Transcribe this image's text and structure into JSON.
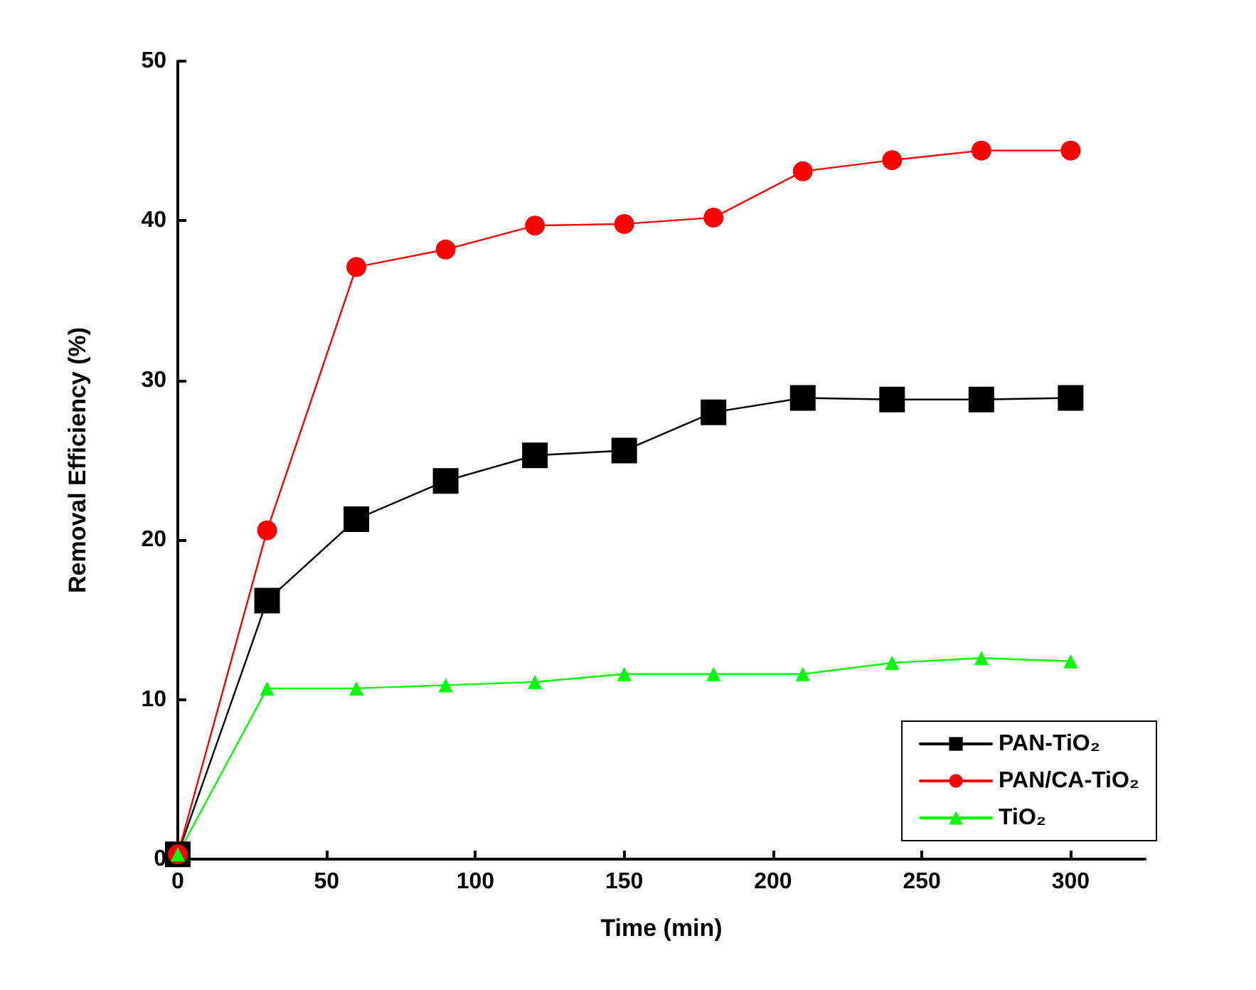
{
  "chart_data": {
    "type": "line",
    "xlabel": "Time (min)",
    "ylabel": "Removal Efficiency (%)",
    "x": [
      0,
      30,
      60,
      90,
      120,
      150,
      180,
      210,
      240,
      270,
      300
    ],
    "series": [
      {
        "name": "PAN-TiO₂",
        "color": "#000000",
        "marker": "square",
        "values": [
          0.3,
          16.2,
          21.3,
          23.7,
          25.3,
          25.6,
          28.0,
          28.9,
          28.8,
          28.8,
          28.9
        ]
      },
      {
        "name": "PAN/CA-TiO₂",
        "color": "#ff0000",
        "marker": "circle",
        "values": [
          0.3,
          20.6,
          37.1,
          38.2,
          39.7,
          39.8,
          40.2,
          43.1,
          43.8,
          44.4,
          44.4
        ]
      },
      {
        "name": "TiO₂",
        "color": "#00ff00",
        "marker": "triangle",
        "values": [
          0.3,
          10.7,
          10.7,
          10.9,
          11.1,
          11.6,
          11.6,
          11.6,
          12.3,
          12.6,
          12.4
        ]
      }
    ],
    "xlim": [
      0,
      325
    ],
    "xticks": [
      0,
      50,
      100,
      150,
      200,
      250,
      300
    ],
    "ylim": [
      0,
      50
    ],
    "yticks": [
      0,
      10,
      20,
      30,
      40,
      50
    ],
    "grid": false,
    "legend": "bottom right",
    "line_style": "solid"
  }
}
